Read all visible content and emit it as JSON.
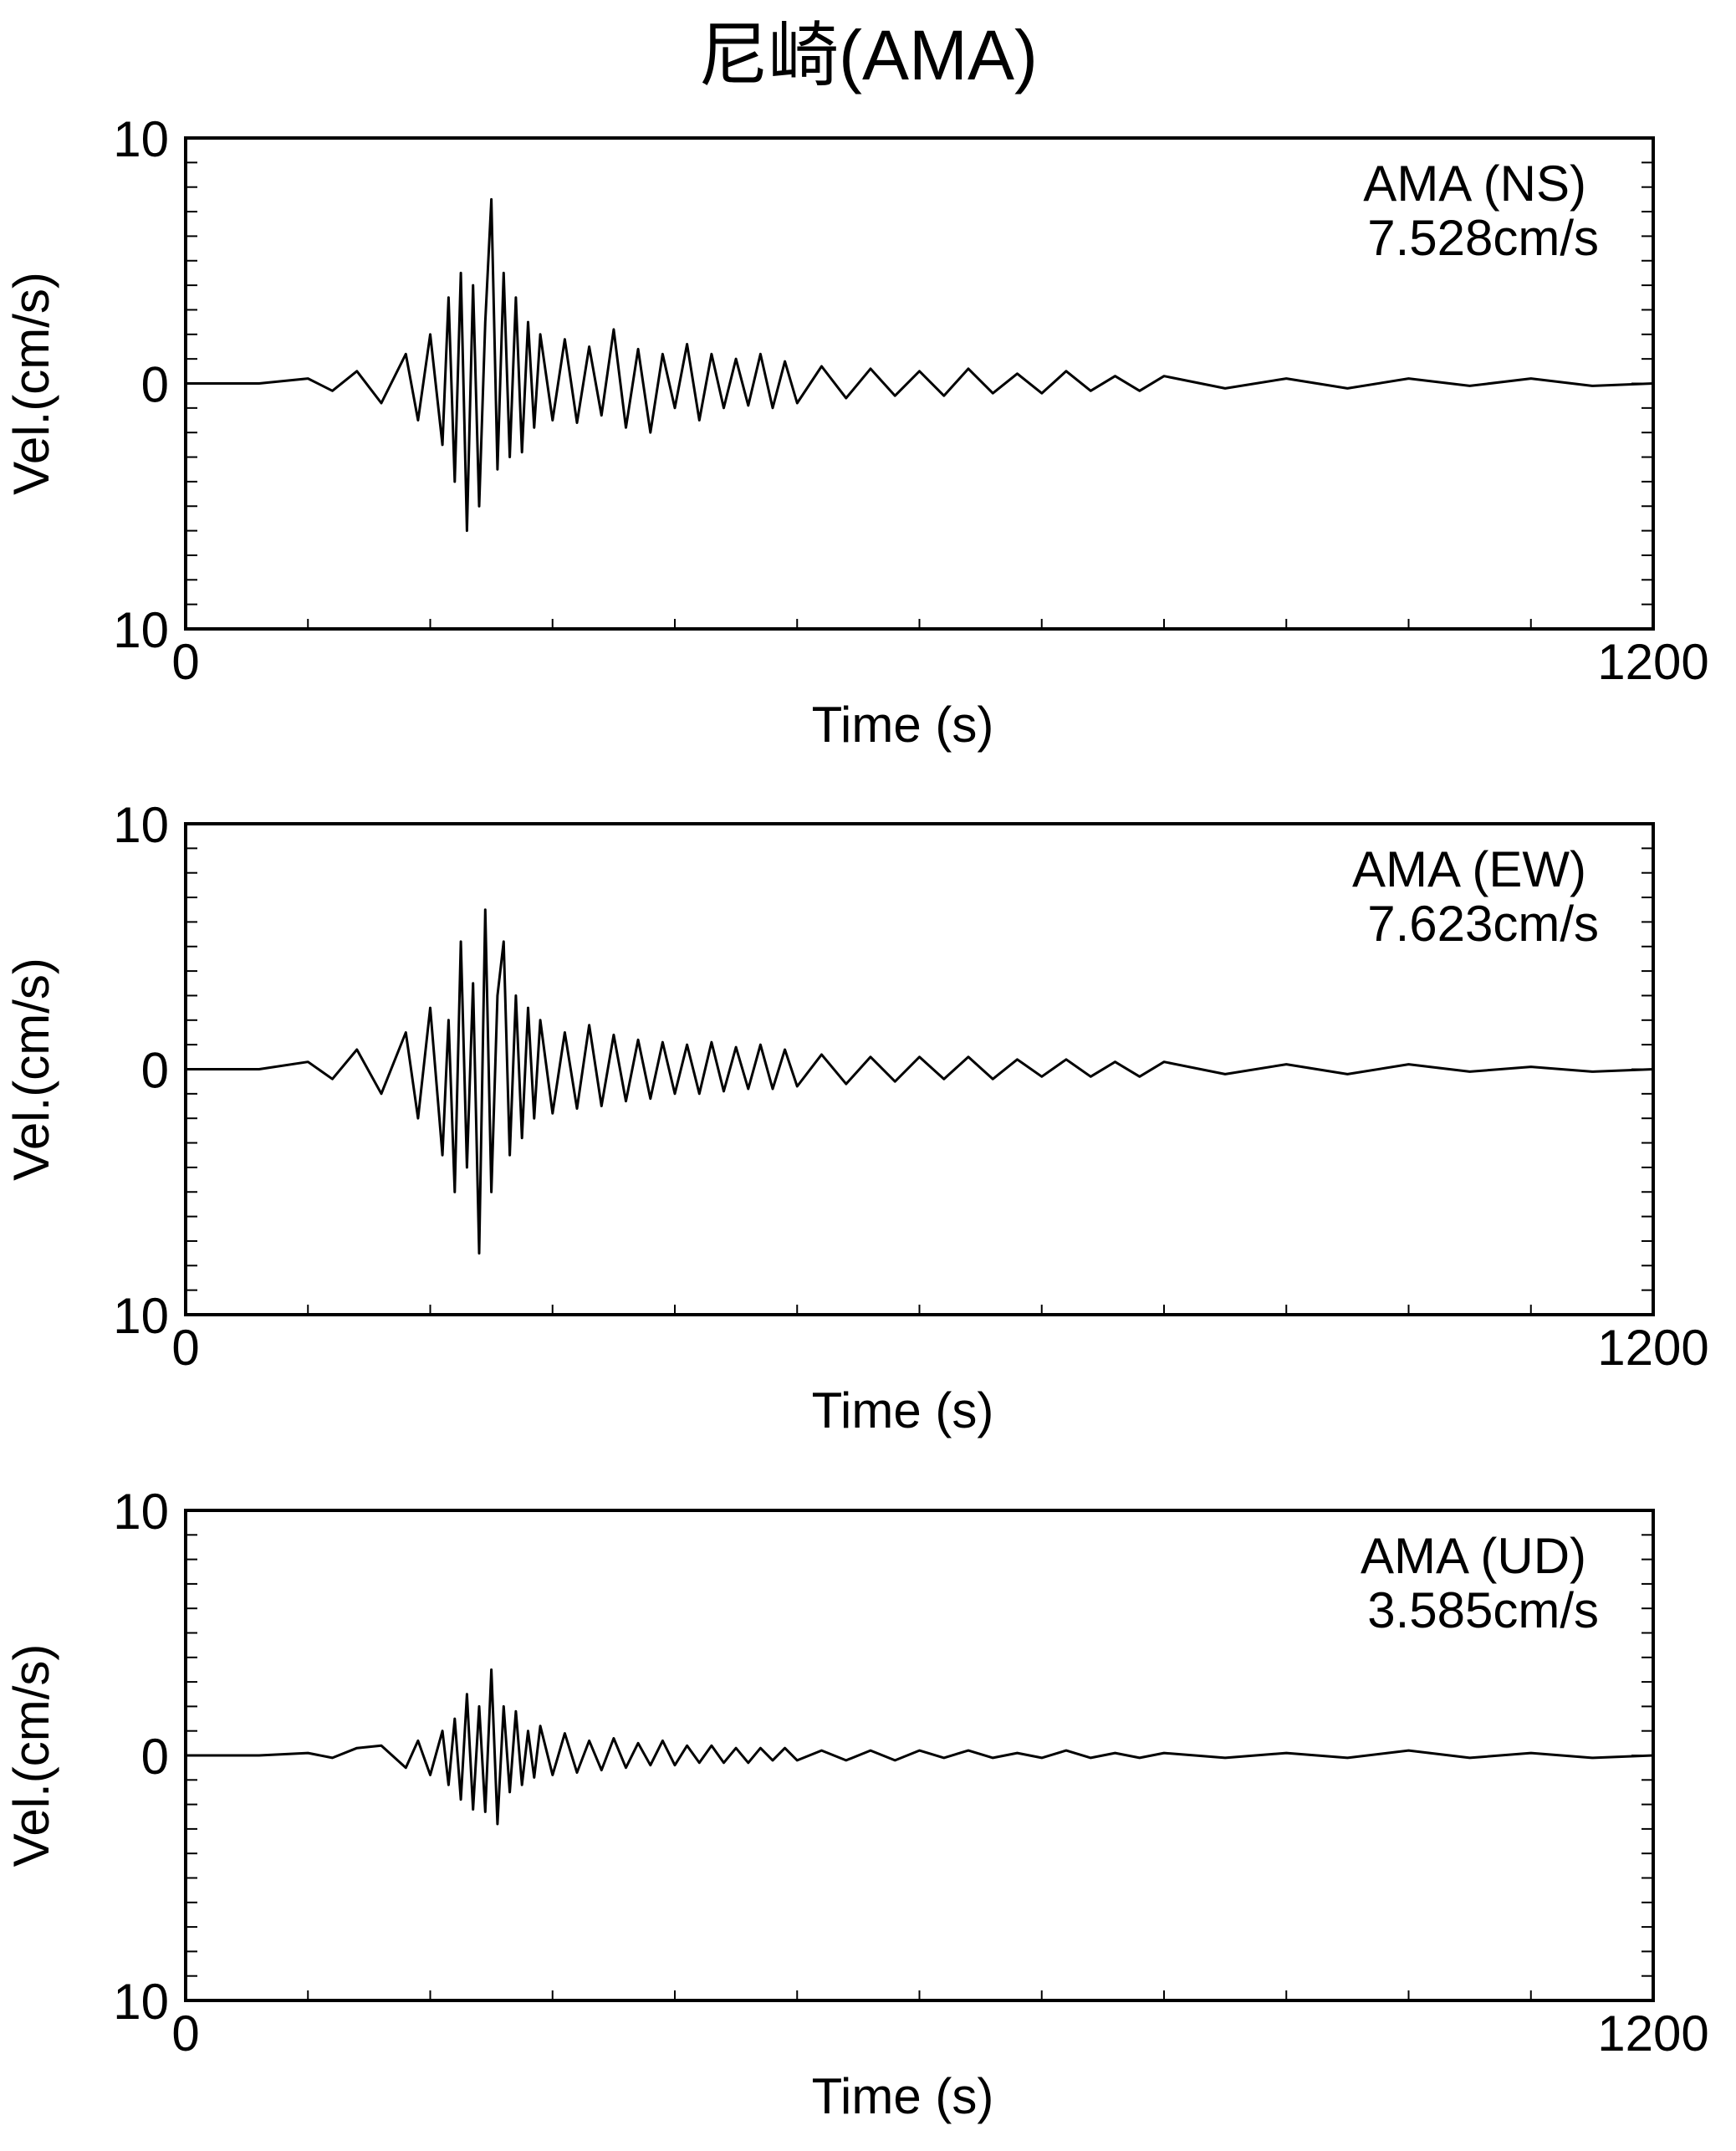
{
  "title": "尼崎(AMA)",
  "chart_data": [
    {
      "type": "line",
      "xlabel": "Time (s)",
      "ylabel": "Vel.(cm/s)",
      "xlim": [
        0,
        1200
      ],
      "ylim": [
        -10,
        10
      ],
      "x_tick_labels": [
        "0",
        "1200"
      ],
      "y_tick_labels": [
        "10",
        "0",
        "10"
      ],
      "annotation": {
        "component": "AMA (NS)",
        "peak": "7.528cm/s"
      },
      "series": [
        {
          "x": [
            0,
            60,
            100,
            120,
            140,
            160,
            180,
            190,
            200,
            210,
            215,
            220,
            225,
            230,
            235,
            240,
            245,
            250,
            255,
            260,
            265,
            270,
            275,
            280,
            285,
            290,
            300,
            310,
            320,
            330,
            340,
            350,
            360,
            370,
            380,
            390,
            400,
            410,
            420,
            430,
            440,
            450,
            460,
            470,
            480,
            490,
            500,
            520,
            540,
            560,
            580,
            600,
            620,
            640,
            660,
            680,
            700,
            720,
            740,
            760,
            780,
            800,
            850,
            900,
            950,
            1000,
            1050,
            1100,
            1150,
            1200
          ],
          "y": [
            0,
            0,
            0.2,
            -0.3,
            0.5,
            -0.8,
            1.2,
            -1.5,
            2.0,
            -2.5,
            3.5,
            -4.0,
            4.5,
            -6.0,
            4.0,
            -5.0,
            2.5,
            7.5,
            -3.5,
            4.5,
            -3.0,
            3.5,
            -2.8,
            2.5,
            -1.8,
            2.0,
            -1.5,
            1.8,
            -1.6,
            1.5,
            -1.3,
            2.2,
            -1.8,
            1.4,
            -2.0,
            1.2,
            -1.0,
            1.6,
            -1.5,
            1.2,
            -1.0,
            1.0,
            -0.9,
            1.2,
            -1.0,
            0.9,
            -0.8,
            0.7,
            -0.6,
            0.6,
            -0.5,
            0.5,
            -0.5,
            0.6,
            -0.4,
            0.4,
            -0.4,
            0.5,
            -0.3,
            0.3,
            -0.3,
            0.3,
            -0.2,
            0.2,
            -0.2,
            0.2,
            -0.1,
            0.2,
            -0.1,
            0
          ]
        }
      ]
    },
    {
      "type": "line",
      "xlabel": "Time (s)",
      "ylabel": "Vel.(cm/s)",
      "xlim": [
        0,
        1200
      ],
      "ylim": [
        -10,
        10
      ],
      "x_tick_labels": [
        "0",
        "1200"
      ],
      "y_tick_labels": [
        "10",
        "0",
        "10"
      ],
      "annotation": {
        "component": "AMA (EW)",
        "peak": "7.623cm/s"
      },
      "series": [
        {
          "x": [
            0,
            60,
            100,
            120,
            140,
            160,
            180,
            190,
            200,
            210,
            215,
            220,
            225,
            230,
            235,
            240,
            245,
            250,
            255,
            260,
            265,
            270,
            275,
            280,
            285,
            290,
            300,
            310,
            320,
            330,
            340,
            350,
            360,
            370,
            380,
            390,
            400,
            410,
            420,
            430,
            440,
            450,
            460,
            470,
            480,
            490,
            500,
            520,
            540,
            560,
            580,
            600,
            620,
            640,
            660,
            680,
            700,
            720,
            740,
            760,
            780,
            800,
            850,
            900,
            950,
            1000,
            1050,
            1100,
            1150,
            1200
          ],
          "y": [
            0,
            0,
            0.3,
            -0.4,
            0.8,
            -1.0,
            1.5,
            -2.0,
            2.5,
            -3.5,
            2.0,
            -5.0,
            5.2,
            -4.0,
            3.5,
            -7.5,
            6.5,
            -5.0,
            3.0,
            5.2,
            -3.5,
            3.0,
            -2.8,
            2.5,
            -2.0,
            2.0,
            -1.8,
            1.5,
            -1.6,
            1.8,
            -1.5,
            1.4,
            -1.3,
            1.2,
            -1.2,
            1.1,
            -1.0,
            1.0,
            -1.0,
            1.1,
            -0.9,
            0.9,
            -0.8,
            1.0,
            -0.8,
            0.8,
            -0.7,
            0.6,
            -0.6,
            0.5,
            -0.5,
            0.5,
            -0.4,
            0.5,
            -0.4,
            0.4,
            -0.3,
            0.4,
            -0.3,
            0.3,
            -0.3,
            0.3,
            -0.2,
            0.2,
            -0.2,
            0.2,
            -0.1,
            0.1,
            -0.1,
            0
          ]
        }
      ]
    },
    {
      "type": "line",
      "xlabel": "Time (s)",
      "ylabel": "Vel.(cm/s)",
      "xlim": [
        0,
        1200
      ],
      "ylim": [
        -10,
        10
      ],
      "x_tick_labels": [
        "0",
        "1200"
      ],
      "y_tick_labels": [
        "10",
        "0",
        "10"
      ],
      "annotation": {
        "component": "AMA (UD)",
        "peak": "3.585cm/s"
      },
      "series": [
        {
          "x": [
            0,
            60,
            100,
            120,
            140,
            160,
            180,
            190,
            200,
            210,
            215,
            220,
            225,
            230,
            235,
            240,
            245,
            250,
            255,
            260,
            265,
            270,
            275,
            280,
            285,
            290,
            300,
            310,
            320,
            330,
            340,
            350,
            360,
            370,
            380,
            390,
            400,
            410,
            420,
            430,
            440,
            450,
            460,
            470,
            480,
            490,
            500,
            520,
            540,
            560,
            580,
            600,
            620,
            640,
            660,
            680,
            700,
            720,
            740,
            760,
            780,
            800,
            850,
            900,
            950,
            1000,
            1050,
            1100,
            1150,
            1200
          ],
          "y": [
            0,
            0,
            0.1,
            -0.1,
            0.3,
            0.4,
            -0.5,
            0.6,
            -0.8,
            1.0,
            -1.2,
            1.5,
            -1.8,
            2.5,
            -2.2,
            2.0,
            -2.3,
            3.5,
            -2.8,
            2.0,
            -1.5,
            1.8,
            -1.2,
            1.0,
            -0.9,
            1.2,
            -0.8,
            0.9,
            -0.7,
            0.6,
            -0.6,
            0.7,
            -0.5,
            0.5,
            -0.4,
            0.6,
            -0.4,
            0.4,
            -0.3,
            0.4,
            -0.3,
            0.3,
            -0.3,
            0.3,
            -0.2,
            0.3,
            -0.2,
            0.2,
            -0.2,
            0.2,
            -0.2,
            0.2,
            -0.1,
            0.2,
            -0.1,
            0.1,
            -0.1,
            0.2,
            -0.1,
            0.1,
            -0.1,
            0.1,
            -0.1,
            0.1,
            -0.1,
            0.2,
            -0.1,
            0.1,
            -0.1,
            0
          ]
        }
      ]
    }
  ]
}
